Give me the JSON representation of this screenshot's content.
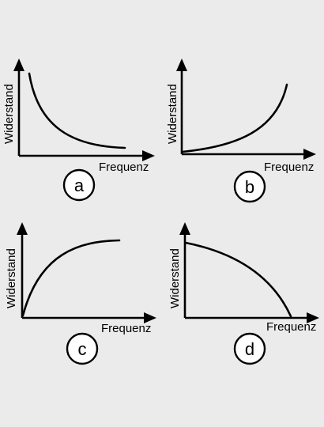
{
  "panels": [
    {
      "id": "a",
      "xlabel": "Frequenz",
      "ylabel": "Widerstand",
      "shape": "decreasing-convex"
    },
    {
      "id": "b",
      "xlabel": "Frequenz",
      "ylabel": "Widerstand",
      "shape": "increasing-convex"
    },
    {
      "id": "c",
      "xlabel": "Frequenz",
      "ylabel": "Widerstand",
      "shape": "increasing-concave"
    },
    {
      "id": "d",
      "xlabel": "Frequenz",
      "ylabel": "Widerstand",
      "shape": "decreasing-concave"
    }
  ],
  "colors": {
    "background": "#ebebeb",
    "ink": "#000000",
    "badge_fill": "#ffffff"
  }
}
